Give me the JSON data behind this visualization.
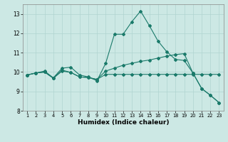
{
  "xlabel": "Humidex (Indice chaleur)",
  "background_color": "#cce8e4",
  "grid_color": "#b0d4d0",
  "line_color": "#1a7a6a",
  "x": [
    1,
    2,
    3,
    4,
    5,
    6,
    7,
    8,
    9,
    10,
    11,
    12,
    13,
    14,
    15,
    16,
    17,
    18,
    19,
    20,
    21,
    22,
    23
  ],
  "line1": [
    9.85,
    9.95,
    10.05,
    9.7,
    10.2,
    10.25,
    9.85,
    9.75,
    9.55,
    10.45,
    11.95,
    11.95,
    12.6,
    13.15,
    12.4,
    11.6,
    11.05,
    10.65,
    10.6,
    9.95,
    9.15,
    8.8,
    8.42
  ],
  "line2": [
    9.85,
    9.95,
    10.0,
    9.68,
    10.1,
    9.98,
    9.75,
    9.72,
    9.62,
    10.05,
    10.2,
    10.35,
    10.45,
    10.55,
    10.62,
    10.72,
    10.82,
    10.9,
    10.95,
    9.95,
    9.15,
    8.8,
    8.42
  ],
  "line3": [
    9.85,
    9.95,
    10.0,
    9.68,
    10.05,
    9.98,
    9.75,
    9.72,
    9.62,
    9.88,
    9.88,
    9.88,
    9.88,
    9.88,
    9.88,
    9.88,
    9.88,
    9.88,
    9.88,
    9.88,
    9.88,
    9.88,
    9.88
  ],
  "ylim": [
    8.0,
    13.5
  ],
  "yticks": [
    8,
    9,
    10,
    11,
    12,
    13
  ],
  "xlim": [
    0.5,
    23.5
  ],
  "xticks": [
    1,
    2,
    3,
    4,
    5,
    6,
    7,
    8,
    9,
    10,
    11,
    12,
    13,
    14,
    15,
    16,
    17,
    18,
    19,
    20,
    21,
    22,
    23
  ]
}
